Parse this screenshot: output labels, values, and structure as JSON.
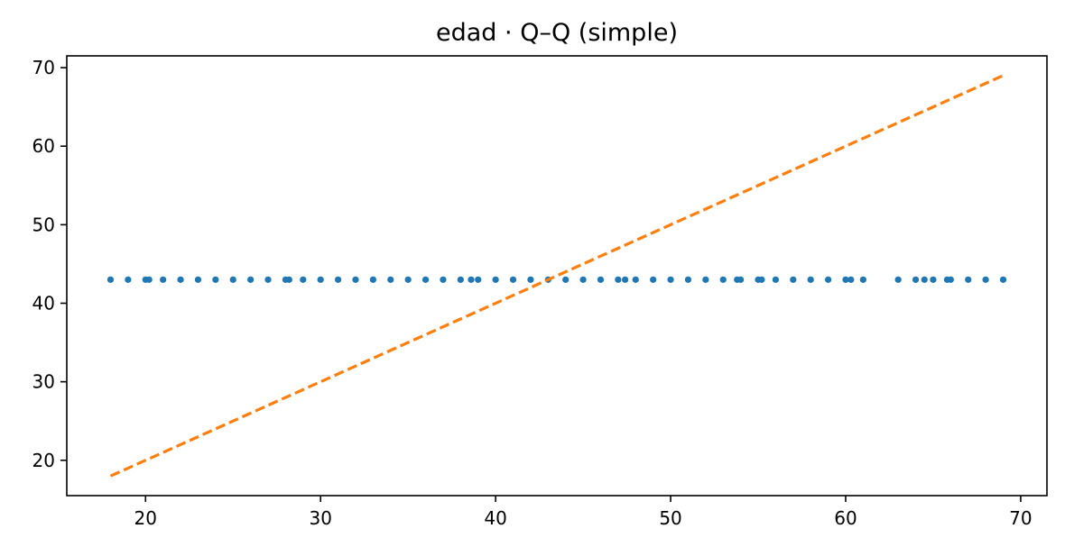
{
  "chart_data": {
    "type": "scatter",
    "title": "edad · Q–Q (simple)",
    "xlabel": "",
    "ylabel": "",
    "xlim": [
      15.5,
      71.5
    ],
    "ylim": [
      15.5,
      71.5
    ],
    "xticks": [
      20,
      30,
      40,
      50,
      60,
      70
    ],
    "yticks": [
      20,
      30,
      40,
      50,
      60,
      70
    ],
    "grid": false,
    "series": [
      {
        "kind": "points",
        "color": "#1f77b4",
        "x": [
          18,
          19,
          20,
          20.2,
          21,
          22,
          23,
          24,
          25,
          26,
          27,
          28,
          28.2,
          29,
          30,
          31,
          32,
          33,
          34,
          35,
          36,
          37,
          38,
          38.6,
          39,
          40,
          41,
          42,
          43,
          44,
          45,
          46,
          47,
          47.4,
          48,
          49,
          50,
          51,
          52,
          53,
          53.8,
          54,
          55,
          55.2,
          56,
          57,
          58,
          59,
          60,
          60.3,
          61,
          63,
          64,
          64.5,
          65,
          65.8,
          66,
          67,
          68,
          69
        ],
        "y": [
          43,
          43,
          43,
          43,
          43,
          43,
          43,
          43,
          43,
          43,
          43,
          43,
          43,
          43,
          43,
          43,
          43,
          43,
          43,
          43,
          43,
          43,
          43,
          43,
          43,
          43,
          43,
          43,
          43,
          43,
          43,
          43,
          43,
          43,
          43,
          43,
          43,
          43,
          43,
          43,
          43,
          43,
          43,
          43,
          43,
          43,
          43,
          43,
          43,
          43,
          43,
          43,
          43,
          43,
          43,
          43,
          43,
          43,
          43,
          43
        ]
      },
      {
        "kind": "reference-line",
        "color": "#ff7f0e",
        "style": "dashed",
        "x": [
          18,
          69
        ],
        "y": [
          18,
          69
        ]
      }
    ]
  }
}
